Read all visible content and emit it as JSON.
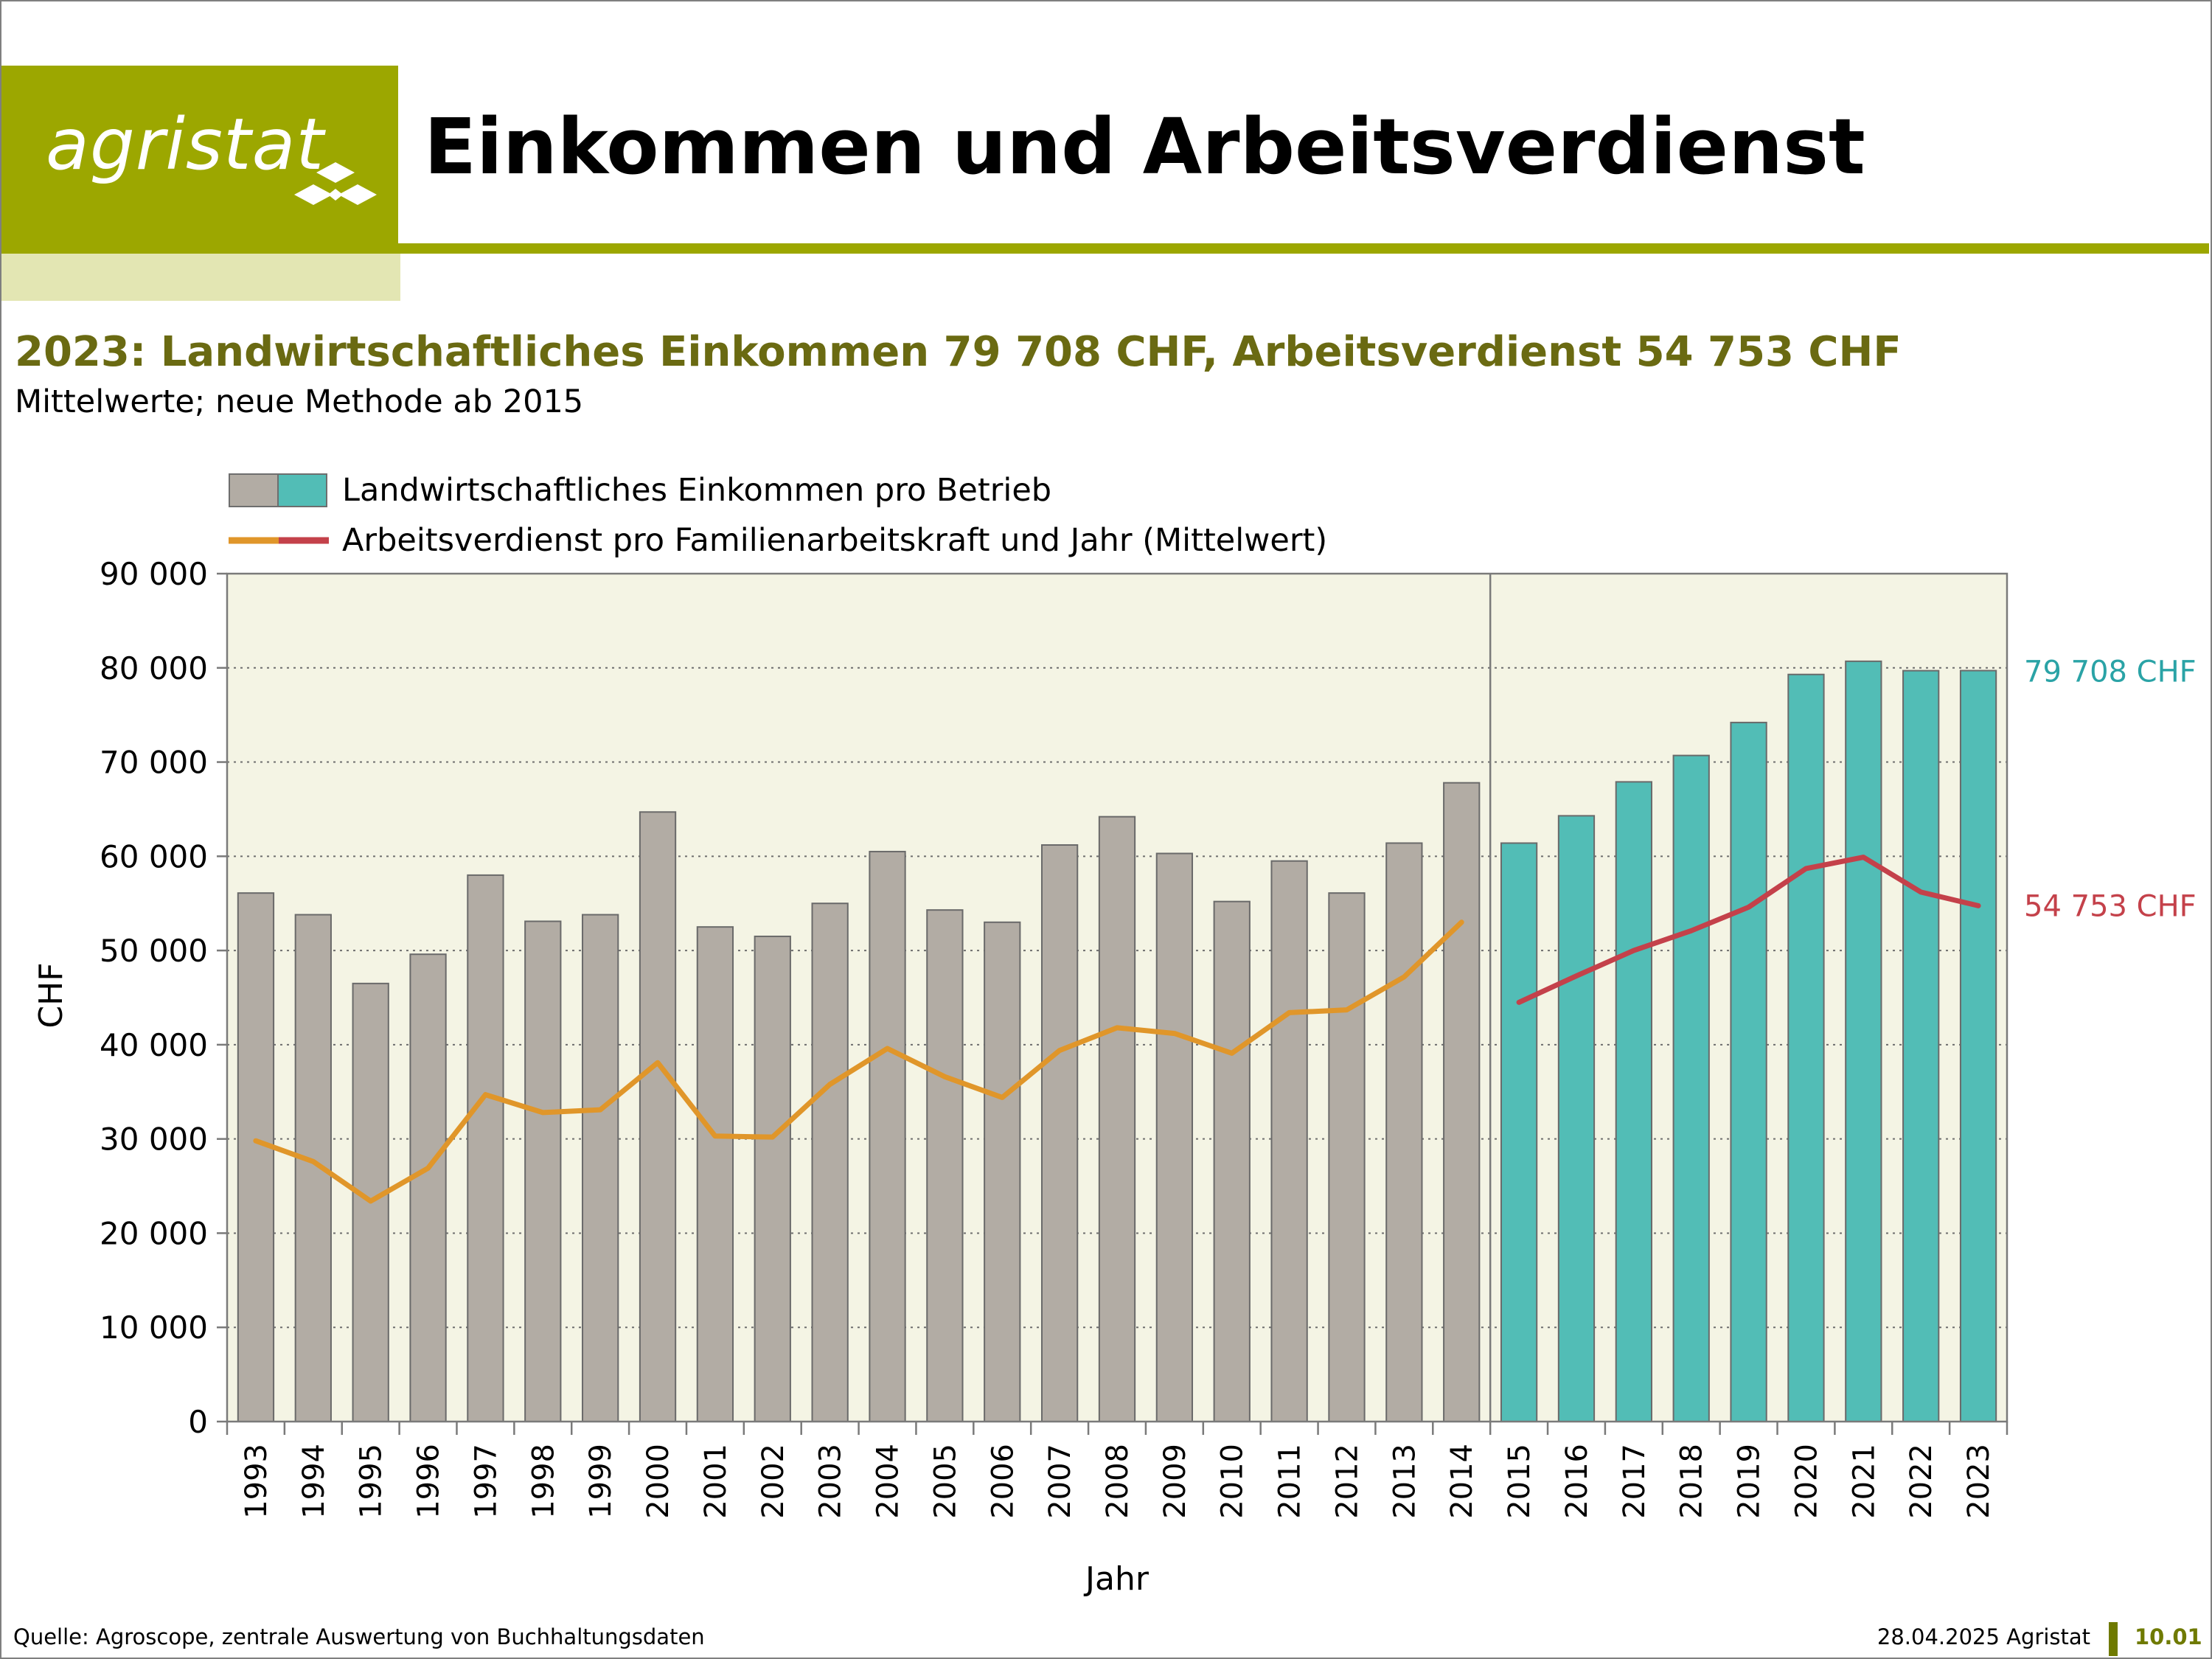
{
  "header": {
    "logo_text": "agristat",
    "title": "Einkommen und Arbeitsverdienst"
  },
  "subtitle": "2023: Landwirtschaftliches Einkommen 79 708 CHF, Arbeitsverdienst 54 753 CHF",
  "subtitle2": "Mittelwerte; neue Methode ab 2015",
  "legend": {
    "bars_label": "Landwirtschaftliches Einkommen pro Betrieb",
    "line_label": "Arbeitsverdienst pro Familienarbeitskraft und Jahr (Mittelwert)"
  },
  "annotations": {
    "income_2023": "79 708 CHF",
    "labour_2023": "54 753 CHF"
  },
  "footer": {
    "source": "Quelle: Agroscope, zentrale Auswertung von Buchhaltungsdaten",
    "date_org": "28.04.2025 Agristat",
    "page_number": "10.01"
  },
  "colors": {
    "brand": "#9ca700",
    "bar_old": "#b2aca4",
    "bar_new": "#52bdb6",
    "line_old": "#e0962a",
    "line_new": "#c4414a",
    "plot_bg": "#f4f4e4",
    "subtitle": "#6a6a12"
  },
  "chart_data": {
    "type": "bar",
    "xlabel": "Jahr",
    "ylabel": "CHF",
    "ylim": [
      0,
      90000
    ],
    "yticks": [
      0,
      10000,
      20000,
      30000,
      40000,
      50000,
      60000,
      70000,
      80000,
      90000
    ],
    "ytick_labels": [
      "0",
      "10 000",
      "20 000",
      "30 000",
      "40 000",
      "50 000",
      "60 000",
      "70 000",
      "80 000",
      "90 000"
    ],
    "grid": "horizontal dotted",
    "categories": [
      "1993",
      "1994",
      "1995",
      "1996",
      "1997",
      "1998",
      "1999",
      "2000",
      "2001",
      "2002",
      "2003",
      "2004",
      "2005",
      "2006",
      "2007",
      "2008",
      "2009",
      "2010",
      "2011",
      "2012",
      "2013",
      "2014",
      "2015",
      "2016",
      "2017",
      "2018",
      "2019",
      "2020",
      "2021",
      "2022",
      "2023"
    ],
    "method_break_after": "2014",
    "series": [
      {
        "name": "Landwirtschaftliches Einkommen pro Betrieb",
        "kind": "bar",
        "values": [
          56100,
          53800,
          46500,
          49600,
          58000,
          53100,
          53800,
          64700,
          52500,
          51500,
          55000,
          60500,
          54300,
          53000,
          61200,
          64200,
          60300,
          55200,
          59500,
          56100,
          61400,
          67800,
          61400,
          64300,
          67900,
          70700,
          74200,
          79300,
          80700,
          79700,
          79708
        ]
      },
      {
        "name": "Arbeitsverdienst pro Familienarbeitskraft und Jahr (Mittelwert)",
        "kind": "line",
        "values": [
          29800,
          27600,
          23400,
          26900,
          34700,
          32800,
          33100,
          38100,
          30300,
          30200,
          35800,
          39600,
          36600,
          34400,
          39400,
          41800,
          41200,
          39100,
          43400,
          43700,
          47200,
          53000,
          44500,
          47300,
          50000,
          52100,
          54600,
          58700,
          59900,
          56200,
          54753
        ]
      }
    ]
  }
}
